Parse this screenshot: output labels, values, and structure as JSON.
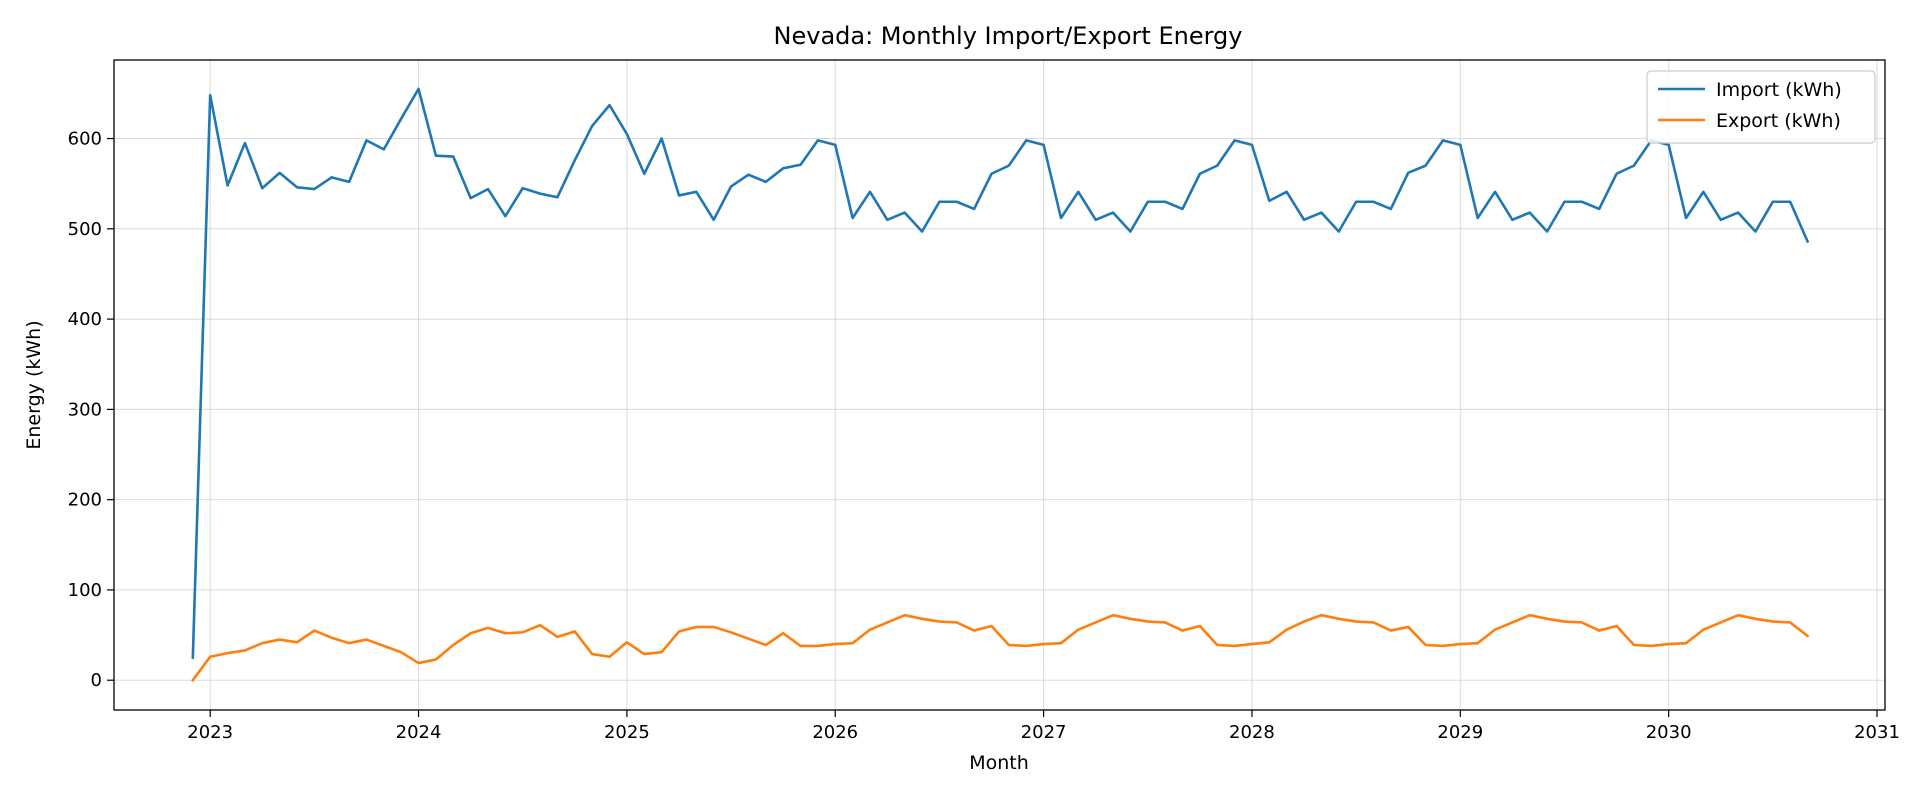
{
  "chart_data": {
    "type": "line",
    "title": "Nevada: Monthly Import/Export Energy",
    "xlabel": "Month",
    "ylabel": "Energy (kWh)",
    "x_ticks": [
      "2023",
      "2024",
      "2025",
      "2026",
      "2027",
      "2028",
      "2029",
      "2030",
      "2031"
    ],
    "y_ticks": [
      0,
      100,
      200,
      300,
      400,
      500,
      600
    ],
    "xlim": [
      "2022-07-15",
      "2031-01-15"
    ],
    "ylim": [
      -33,
      687
    ],
    "grid": true,
    "legend_position": "top-right",
    "x": [
      "2022-12",
      "2023-01",
      "2023-02",
      "2023-03",
      "2023-04",
      "2023-05",
      "2023-06",
      "2023-07",
      "2023-08",
      "2023-09",
      "2023-10",
      "2023-11",
      "2023-12",
      "2024-01",
      "2024-02",
      "2024-03",
      "2024-04",
      "2024-05",
      "2024-06",
      "2024-07",
      "2024-08",
      "2024-09",
      "2024-10",
      "2024-11",
      "2024-12",
      "2025-01",
      "2025-02",
      "2025-03",
      "2025-04",
      "2025-05",
      "2025-06",
      "2025-07",
      "2025-08",
      "2025-09",
      "2025-10",
      "2025-11",
      "2025-12",
      "2026-01",
      "2026-02",
      "2026-03",
      "2026-04",
      "2026-05",
      "2026-06",
      "2026-07",
      "2026-08",
      "2026-09",
      "2026-10",
      "2026-11",
      "2026-12",
      "2027-01",
      "2027-02",
      "2027-03",
      "2027-04",
      "2027-05",
      "2027-06",
      "2027-07",
      "2027-08",
      "2027-09",
      "2027-10",
      "2027-11",
      "2027-12",
      "2028-01",
      "2028-02",
      "2028-03",
      "2028-04",
      "2028-05",
      "2028-06",
      "2028-07",
      "2028-08",
      "2028-09",
      "2028-10",
      "2028-11",
      "2028-12",
      "2029-01",
      "2029-02",
      "2029-03",
      "2029-04",
      "2029-05",
      "2029-06",
      "2029-07",
      "2029-08",
      "2029-09",
      "2029-10",
      "2029-11",
      "2029-12",
      "2030-01",
      "2030-02",
      "2030-03",
      "2030-04",
      "2030-05",
      "2030-06",
      "2030-07",
      "2030-08",
      "2030-09"
    ],
    "series": [
      {
        "name": "Import (kWh)",
        "color": "#1f77b4",
        "values": [
          25,
          648,
          548,
          595,
          545,
          562,
          546,
          544,
          557,
          552,
          598,
          588,
          622,
          655,
          581,
          580,
          534,
          544,
          514,
          545,
          539,
          535,
          576,
          614,
          637,
          605,
          561,
          600,
          537,
          541,
          510,
          547,
          560,
          552,
          567,
          571,
          598,
          593,
          512,
          541,
          510,
          518,
          497,
          530,
          530,
          522,
          561,
          570,
          598,
          593,
          512,
          541,
          510,
          518,
          497,
          530,
          530,
          522,
          561,
          570,
          598,
          593,
          531,
          541,
          510,
          518,
          497,
          530,
          530,
          522,
          562,
          570,
          598,
          593,
          512,
          541,
          510,
          518,
          497,
          530,
          530,
          522,
          561,
          570,
          598,
          593,
          512,
          541,
          510,
          518,
          497,
          530,
          530,
          486
        ]
      },
      {
        "name": "Export (kWh)",
        "color": "#ff7f0e",
        "values": [
          0,
          26,
          30,
          33,
          41,
          45,
          42,
          55,
          47,
          41,
          45,
          38,
          31,
          19,
          23,
          39,
          52,
          58,
          52,
          53,
          61,
          48,
          54,
          29,
          26,
          42,
          29,
          31,
          54,
          59,
          59,
          53,
          46,
          39,
          52,
          38,
          38,
          40,
          41,
          56,
          64,
          72,
          68,
          65,
          64,
          55,
          60,
          39,
          38,
          40,
          41,
          56,
          64,
          72,
          68,
          65,
          64,
          55,
          60,
          39,
          38,
          40,
          42,
          56,
          65,
          72,
          68,
          65,
          64,
          55,
          59,
          39,
          38,
          40,
          41,
          56,
          64,
          72,
          68,
          65,
          64,
          55,
          60,
          39,
          38,
          40,
          41,
          56,
          64,
          72,
          68,
          65,
          64,
          49
        ]
      }
    ]
  }
}
